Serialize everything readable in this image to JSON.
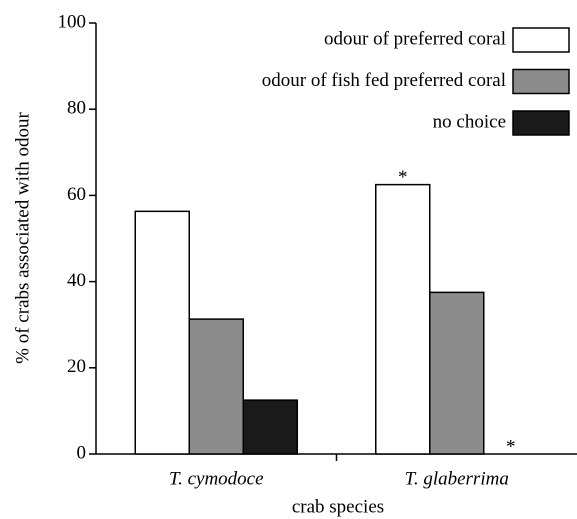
{
  "chart_data": {
    "type": "bar",
    "ylabel": "% of crabs associated with odour",
    "xlabel": "crab species",
    "categories": [
      "T. cymodoce",
      "T. glaberrima"
    ],
    "series": [
      {
        "name": "odour of preferred coral",
        "color": "#ffffff",
        "values": [
          56.3,
          62.5
        ]
      },
      {
        "name": "odour of fish fed preferred coral",
        "color": "#8c8c8c",
        "values": [
          31.3,
          37.5
        ]
      },
      {
        "name": "no choice",
        "color": "#1a1a1a",
        "values": [
          12.5,
          0
        ]
      }
    ],
    "annotations": [
      "*",
      "*"
    ],
    "ylim": [
      0,
      100
    ],
    "yticks": [
      0,
      20,
      40,
      60,
      80,
      100
    ],
    "grid": false,
    "legend": "upper right"
  }
}
